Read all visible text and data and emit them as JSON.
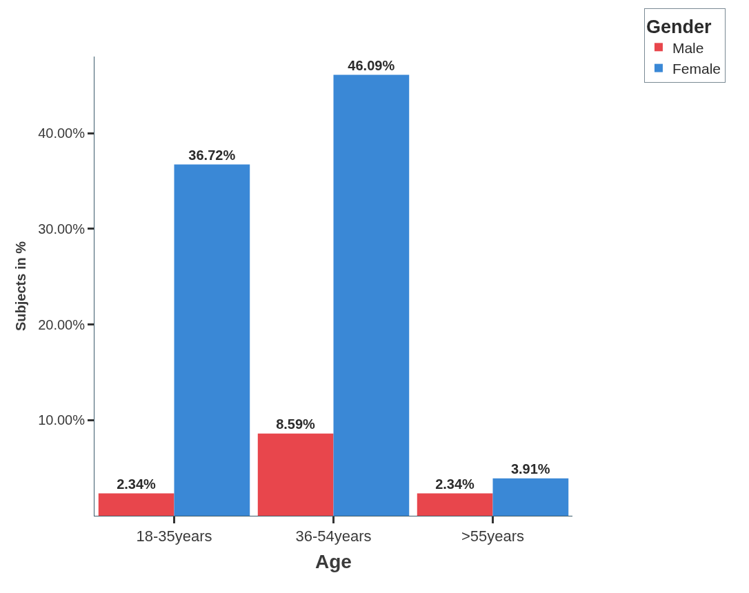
{
  "chart_data": {
    "type": "bar",
    "xlabel": "Age",
    "ylabel": "Subjects in %",
    "legend_title": "Gender",
    "categories": [
      "18-35years",
      "36-54years",
      ">55years"
    ],
    "series": [
      {
        "name": "Male",
        "color": "#e8464c",
        "values": [
          2.34,
          8.59,
          2.34
        ],
        "value_labels": [
          "2.34%",
          "8.59%",
          "2.34%"
        ]
      },
      {
        "name": "Female",
        "color": "#3a88d6",
        "values": [
          36.72,
          46.09,
          3.91
        ],
        "value_labels": [
          "36.72%",
          "46.09%",
          "3.91%"
        ]
      }
    ],
    "ylim": [
      0,
      48
    ],
    "yticks": [
      {
        "value": 10,
        "label": "10.00%"
      },
      {
        "value": 20,
        "label": "20.00%"
      },
      {
        "value": 30,
        "label": "30.00%"
      },
      {
        "value": 40,
        "label": "40.00%"
      }
    ],
    "legend": "top right"
  }
}
